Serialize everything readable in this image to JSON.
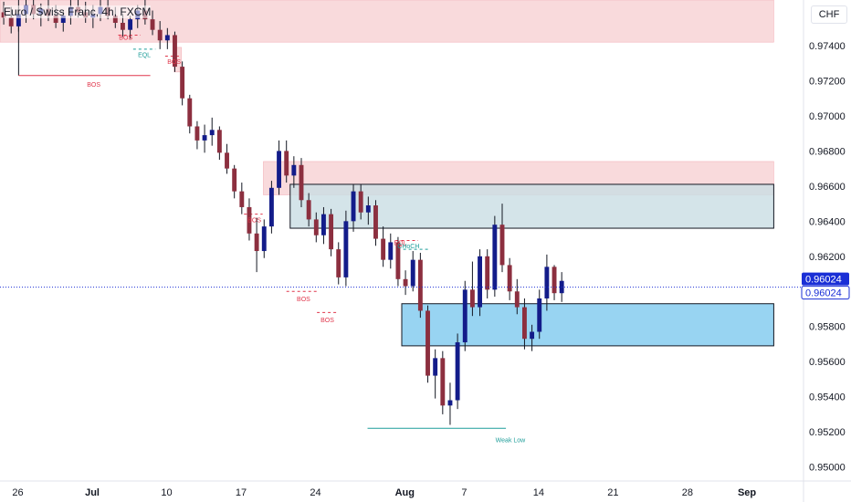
{
  "header": {
    "title": "Euro / Swiss Franc, 4h, FXCM",
    "currency": "CHF"
  },
  "chart_data": {
    "type": "candlestick",
    "ylim": [
      0.9492,
      0.9766
    ],
    "xlim": [
      0,
      108
    ],
    "y_ticks": [
      "0.97400",
      "0.97200",
      "0.97000",
      "0.96800",
      "0.96600",
      "0.96400",
      "0.96200",
      "0.96000",
      "0.95800",
      "0.95600",
      "0.95400",
      "0.95200",
      "0.95000"
    ],
    "y_tick_values": [
      0.974,
      0.972,
      0.97,
      0.968,
      0.966,
      0.964,
      0.962,
      0.96,
      0.958,
      0.956,
      0.954,
      0.952,
      0.95
    ],
    "x_ticks": [
      {
        "label": "26",
        "pos": 2.4
      },
      {
        "label": "Jul",
        "pos": 12.4
      },
      {
        "label": "10",
        "pos": 22.4
      },
      {
        "label": "17",
        "pos": 32.4
      },
      {
        "label": "24",
        "pos": 42.4
      },
      {
        "label": "Aug",
        "pos": 54.4
      },
      {
        "label": "7",
        "pos": 62.4
      },
      {
        "label": "14",
        "pos": 72.4
      },
      {
        "label": "21",
        "pos": 82.4
      },
      {
        "label": "28",
        "pos": 92.4
      },
      {
        "label": "Sep",
        "pos": 100.4
      }
    ],
    "current_price": {
      "values": [
        "0.96024",
        "0.96024"
      ],
      "value": 0.96024
    },
    "colors": {
      "up": "#131c8a",
      "down": "#8c2f3f",
      "bos": "#e0364b",
      "eql": "#1f9e9a",
      "supply": "#f8d3d6",
      "demand": "#86ccf0",
      "gray_zone": "#c9dde3",
      "price_line": "#1a2fd6"
    },
    "zones": [
      {
        "kind": "supply",
        "x0": 0,
        "x1": 104,
        "y0": 0.9766,
        "y1": 0.9742
      },
      {
        "kind": "supply",
        "x0": 35.4,
        "x1": 104,
        "y0": 0.9674,
        "y1": 0.9655
      },
      {
        "kind": "supply",
        "x0": 23.4,
        "x1": 24.4,
        "y0": 0.9739,
        "y1": 0.9725
      },
      {
        "kind": "gray_zone",
        "x0": 39,
        "x1": 104,
        "y0": 0.9661,
        "y1": 0.9636
      },
      {
        "kind": "demand",
        "x0": 54,
        "x1": 104,
        "y0": 0.9593,
        "y1": 0.9569
      }
    ],
    "annotations": [
      {
        "text": "BOS",
        "x": 12.6,
        "y": 0.97165,
        "color": "bos"
      },
      {
        "text": "BOS",
        "x": 16.9,
        "y": 0.97435,
        "color": "bos"
      },
      {
        "text": "EQL",
        "x": 19.4,
        "y": 0.97335,
        "color": "eql"
      },
      {
        "text": "BOS",
        "x": 23.4,
        "y": 0.97295,
        "color": "bos"
      },
      {
        "text": "BOS",
        "x": 34.2,
        "y": 0.96395,
        "color": "bos"
      },
      {
        "text": "BOS",
        "x": 40.8,
        "y": 0.95945,
        "color": "bos"
      },
      {
        "text": "BOS",
        "x": 44.0,
        "y": 0.95825,
        "color": "bos"
      },
      {
        "text": "EQL",
        "x": 53.8,
        "y": 0.96265,
        "color": "bos"
      },
      {
        "text": "CHoCH",
        "x": 54.9,
        "y": 0.96245,
        "color": "eql"
      },
      {
        "text": "Weak Low",
        "x": 68.6,
        "y": 0.9514,
        "color": "eql"
      }
    ],
    "candles": [
      {
        "o": 0.9759,
        "h": 0.9765,
        "l": 0.9752,
        "c": 0.9756
      },
      {
        "o": 0.9756,
        "h": 0.9762,
        "l": 0.9747,
        "c": 0.9751
      },
      {
        "o": 0.9751,
        "h": 0.976,
        "l": 0.9748,
        "c": 0.9758
      },
      {
        "o": 0.9758,
        "h": 0.9766,
        "l": 0.9753,
        "c": 0.9763
      },
      {
        "o": 0.9763,
        "h": 0.9766,
        "l": 0.9755,
        "c": 0.9758
      },
      {
        "o": 0.9758,
        "h": 0.9764,
        "l": 0.9751,
        "c": 0.9761
      },
      {
        "o": 0.9761,
        "h": 0.9766,
        "l": 0.9754,
        "c": 0.9757
      },
      {
        "o": 0.9757,
        "h": 0.9763,
        "l": 0.975,
        "c": 0.9753
      },
      {
        "o": 0.9753,
        "h": 0.976,
        "l": 0.9748,
        "c": 0.9757
      },
      {
        "o": 0.9757,
        "h": 0.9766,
        "l": 0.9752,
        "c": 0.9762
      },
      {
        "o": 0.9762,
        "h": 0.9766,
        "l": 0.9756,
        "c": 0.9759
      },
      {
        "o": 0.9759,
        "h": 0.9765,
        "l": 0.9753,
        "c": 0.9756
      },
      {
        "o": 0.9756,
        "h": 0.9763,
        "l": 0.975,
        "c": 0.9758
      },
      {
        "o": 0.9758,
        "h": 0.9766,
        "l": 0.9754,
        "c": 0.9762
      },
      {
        "o": 0.9762,
        "h": 0.9766,
        "l": 0.9755,
        "c": 0.9757
      },
      {
        "o": 0.9757,
        "h": 0.9762,
        "l": 0.975,
        "c": 0.9753
      },
      {
        "o": 0.9753,
        "h": 0.9758,
        "l": 0.9745,
        "c": 0.9749
      },
      {
        "o": 0.9749,
        "h": 0.9757,
        "l": 0.9744,
        "c": 0.9755
      },
      {
        "o": 0.9755,
        "h": 0.9763,
        "l": 0.975,
        "c": 0.976
      },
      {
        "o": 0.976,
        "h": 0.9766,
        "l": 0.9752,
        "c": 0.9755
      },
      {
        "o": 0.9755,
        "h": 0.976,
        "l": 0.9746,
        "c": 0.9749
      },
      {
        "o": 0.9749,
        "h": 0.9754,
        "l": 0.9738,
        "c": 0.9743
      },
      {
        "o": 0.9743,
        "h": 0.975,
        "l": 0.9738,
        "c": 0.9746
      },
      {
        "o": 0.9746,
        "h": 0.9748,
        "l": 0.9725,
        "c": 0.9728
      },
      {
        "o": 0.9728,
        "h": 0.9731,
        "l": 0.9706,
        "c": 0.971
      },
      {
        "o": 0.971,
        "h": 0.9712,
        "l": 0.969,
        "c": 0.9694
      },
      {
        "o": 0.9694,
        "h": 0.9697,
        "l": 0.9681,
        "c": 0.9686
      },
      {
        "o": 0.9686,
        "h": 0.9695,
        "l": 0.9679,
        "c": 0.9689
      },
      {
        "o": 0.9689,
        "h": 0.9699,
        "l": 0.9683,
        "c": 0.9692
      },
      {
        "o": 0.9692,
        "h": 0.9694,
        "l": 0.9675,
        "c": 0.9679
      },
      {
        "o": 0.9679,
        "h": 0.9684,
        "l": 0.9667,
        "c": 0.967
      },
      {
        "o": 0.967,
        "h": 0.9672,
        "l": 0.9653,
        "c": 0.9657
      },
      {
        "o": 0.9657,
        "h": 0.9662,
        "l": 0.9644,
        "c": 0.9648
      },
      {
        "o": 0.9648,
        "h": 0.9653,
        "l": 0.9629,
        "c": 0.9633
      },
      {
        "o": 0.9633,
        "h": 0.9642,
        "l": 0.9611,
        "c": 0.9623
      },
      {
        "o": 0.9623,
        "h": 0.9641,
        "l": 0.9619,
        "c": 0.9637
      },
      {
        "o": 0.9637,
        "h": 0.9663,
        "l": 0.9633,
        "c": 0.9659
      },
      {
        "o": 0.9659,
        "h": 0.9686,
        "l": 0.9655,
        "c": 0.968
      },
      {
        "o": 0.968,
        "h": 0.9686,
        "l": 0.9662,
        "c": 0.9666
      },
      {
        "o": 0.9666,
        "h": 0.9677,
        "l": 0.9659,
        "c": 0.9672
      },
      {
        "o": 0.9672,
        "h": 0.9676,
        "l": 0.9648,
        "c": 0.9652
      },
      {
        "o": 0.9652,
        "h": 0.9656,
        "l": 0.9637,
        "c": 0.9641
      },
      {
        "o": 0.9641,
        "h": 0.9645,
        "l": 0.9628,
        "c": 0.9632
      },
      {
        "o": 0.9632,
        "h": 0.9648,
        "l": 0.9627,
        "c": 0.9644
      },
      {
        "o": 0.9644,
        "h": 0.9647,
        "l": 0.962,
        "c": 0.9624
      },
      {
        "o": 0.9624,
        "h": 0.9628,
        "l": 0.9604,
        "c": 0.9608
      },
      {
        "o": 0.9608,
        "h": 0.9646,
        "l": 0.9603,
        "c": 0.964
      },
      {
        "o": 0.964,
        "h": 0.9661,
        "l": 0.9634,
        "c": 0.9657
      },
      {
        "o": 0.9657,
        "h": 0.9661,
        "l": 0.9641,
        "c": 0.9645
      },
      {
        "o": 0.9645,
        "h": 0.9654,
        "l": 0.9638,
        "c": 0.9649
      },
      {
        "o": 0.9649,
        "h": 0.9652,
        "l": 0.9626,
        "c": 0.963
      },
      {
        "o": 0.963,
        "h": 0.9637,
        "l": 0.9614,
        "c": 0.9618
      },
      {
        "o": 0.9618,
        "h": 0.9633,
        "l": 0.9613,
        "c": 0.9628
      },
      {
        "o": 0.9628,
        "h": 0.9631,
        "l": 0.9603,
        "c": 0.9607
      },
      {
        "o": 0.9607,
        "h": 0.9612,
        "l": 0.9598,
        "c": 0.9603
      },
      {
        "o": 0.9603,
        "h": 0.9623,
        "l": 0.96,
        "c": 0.9618
      },
      {
        "o": 0.9618,
        "h": 0.9622,
        "l": 0.9585,
        "c": 0.9589
      },
      {
        "o": 0.9589,
        "h": 0.9592,
        "l": 0.9548,
        "c": 0.9552
      },
      {
        "o": 0.9552,
        "h": 0.9567,
        "l": 0.9539,
        "c": 0.9562
      },
      {
        "o": 0.9562,
        "h": 0.9566,
        "l": 0.953,
        "c": 0.9535
      },
      {
        "o": 0.9535,
        "h": 0.9548,
        "l": 0.9524,
        "c": 0.9538
      },
      {
        "o": 0.9538,
        "h": 0.9576,
        "l": 0.9533,
        "c": 0.9571
      },
      {
        "o": 0.9571,
        "h": 0.9606,
        "l": 0.9566,
        "c": 0.9601
      },
      {
        "o": 0.9601,
        "h": 0.9617,
        "l": 0.9586,
        "c": 0.9591
      },
      {
        "o": 0.9591,
        "h": 0.9624,
        "l": 0.9586,
        "c": 0.962
      },
      {
        "o": 0.962,
        "h": 0.9624,
        "l": 0.9596,
        "c": 0.9601
      },
      {
        "o": 0.9601,
        "h": 0.9643,
        "l": 0.9597,
        "c": 0.9638
      },
      {
        "o": 0.9638,
        "h": 0.965,
        "l": 0.9611,
        "c": 0.9615
      },
      {
        "o": 0.9615,
        "h": 0.9619,
        "l": 0.9595,
        "c": 0.96
      },
      {
        "o": 0.96,
        "h": 0.9607,
        "l": 0.9587,
        "c": 0.9591
      },
      {
        "o": 0.9591,
        "h": 0.9596,
        "l": 0.9567,
        "c": 0.9573
      },
      {
        "o": 0.9573,
        "h": 0.9581,
        "l": 0.9566,
        "c": 0.9577
      },
      {
        "o": 0.9577,
        "h": 0.9601,
        "l": 0.9573,
        "c": 0.9596
      },
      {
        "o": 0.9596,
        "h": 0.9621,
        "l": 0.9589,
        "c": 0.9614
      },
      {
        "o": 0.9614,
        "h": 0.9615,
        "l": 0.9595,
        "c": 0.9599
      },
      {
        "o": 0.9599,
        "h": 0.9611,
        "l": 0.9594,
        "c": 0.9606
      }
    ]
  }
}
